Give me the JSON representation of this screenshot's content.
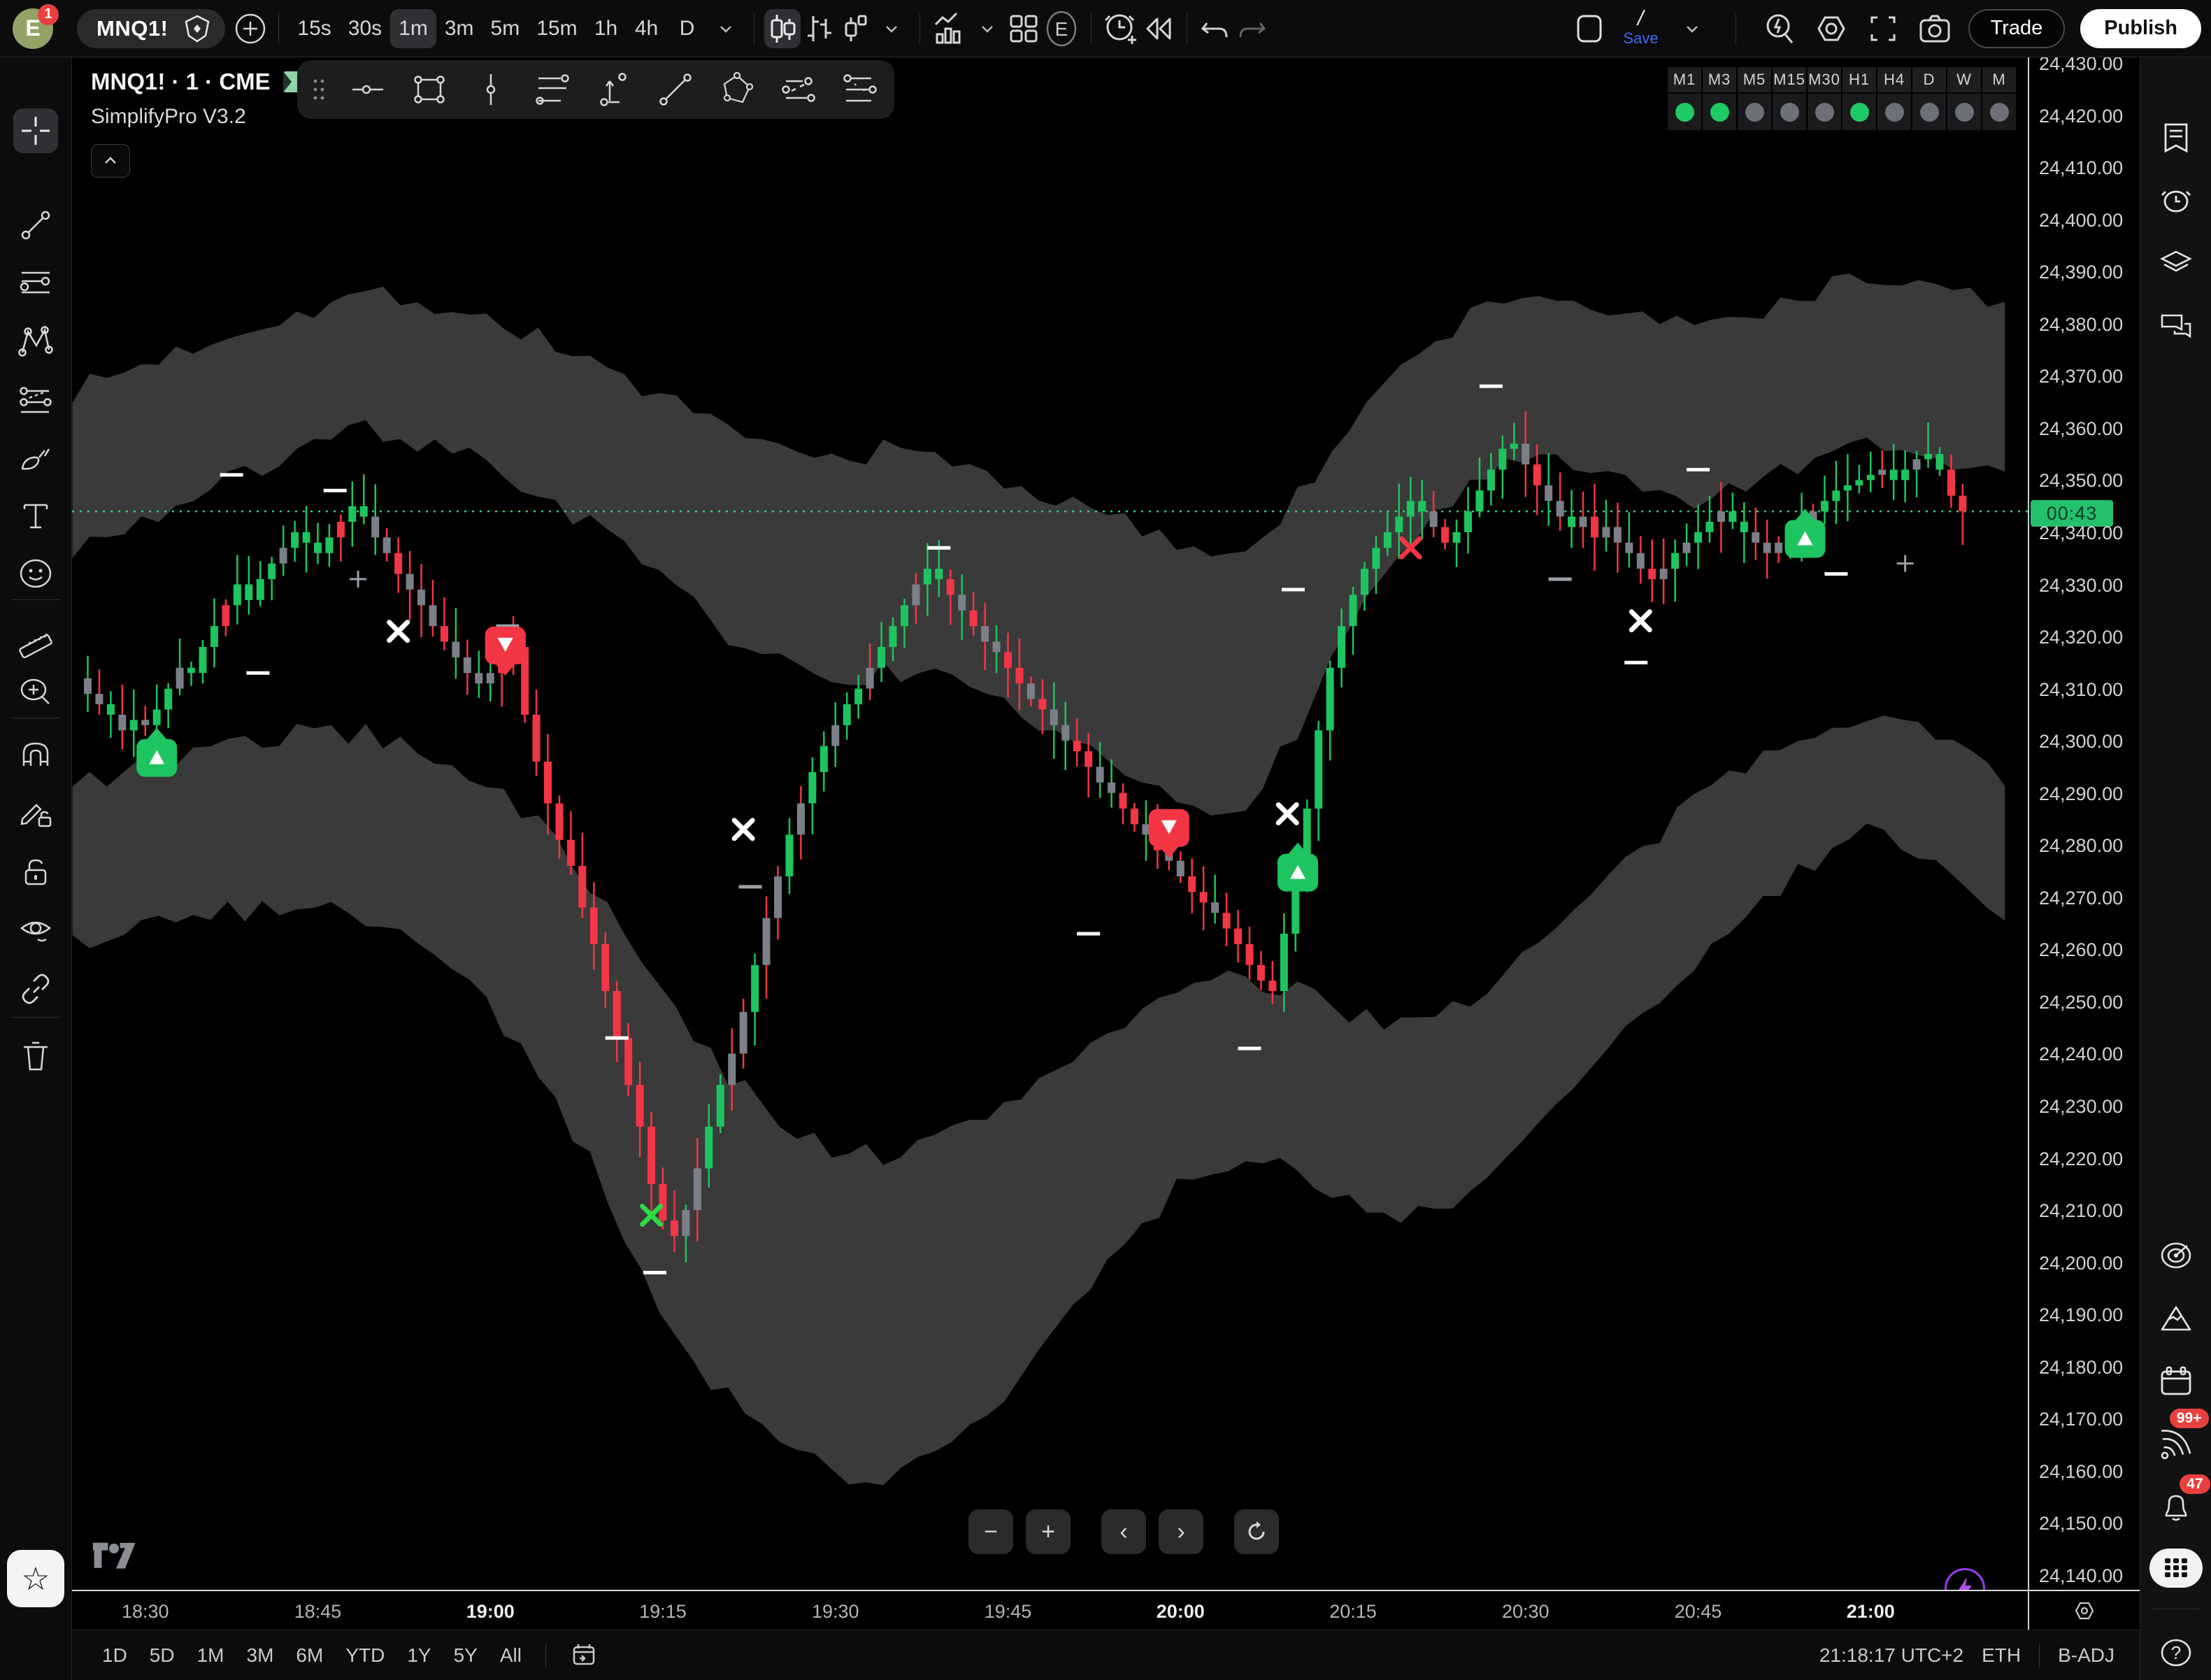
{
  "header": {
    "avatar_letter": "E",
    "avatar_badge": "1",
    "symbol": "MNQ1!",
    "intervals": [
      "15s",
      "30s",
      "1m",
      "3m",
      "5m",
      "15m",
      "1h",
      "4h",
      "D"
    ],
    "active_interval": "1m",
    "exchange_letter": "E",
    "save_label": "Save",
    "trade_label": "Trade",
    "publish_label": "Publish"
  },
  "legend": {
    "title": "MNQ1! · 1 · CME",
    "indicator": "SimplifyPro V3.2"
  },
  "mtf_panel": {
    "columns": [
      {
        "label": "M1",
        "on": true
      },
      {
        "label": "M3",
        "on": true
      },
      {
        "label": "M5",
        "on": false
      },
      {
        "label": "M15",
        "on": false
      },
      {
        "label": "M30",
        "on": false
      },
      {
        "label": "H1",
        "on": true
      },
      {
        "label": "H4",
        "on": false
      },
      {
        "label": "D",
        "on": false
      },
      {
        "label": "W",
        "on": false
      },
      {
        "label": "M",
        "on": false
      }
    ],
    "on_color": "#1ecb62",
    "off_color": "#6d7076"
  },
  "price_axis": {
    "max": 24430,
    "min": 24140,
    "step": 10,
    "countdown": "00:43"
  },
  "time_axis": {
    "labels": [
      {
        "text": "18:30",
        "minute": 5,
        "bold": false
      },
      {
        "text": "18:45",
        "minute": 20,
        "bold": false
      },
      {
        "text": "19:00",
        "minute": 35,
        "bold": true
      },
      {
        "text": "19:15",
        "minute": 50,
        "bold": false
      },
      {
        "text": "19:30",
        "minute": 65,
        "bold": false
      },
      {
        "text": "19:45",
        "minute": 80,
        "bold": false
      },
      {
        "text": "20:00",
        "minute": 95,
        "bold": true
      },
      {
        "text": "20:15",
        "minute": 110,
        "bold": false
      },
      {
        "text": "20:30",
        "minute": 125,
        "bold": false
      },
      {
        "text": "20:45",
        "minute": 140,
        "bold": false
      },
      {
        "text": "21:00",
        "minute": 155,
        "bold": true
      }
    ]
  },
  "bottom_bar": {
    "ranges": [
      "1D",
      "5D",
      "1M",
      "3M",
      "6M",
      "YTD",
      "1Y",
      "5Y",
      "All"
    ],
    "clock": "21:18:17 UTC+2",
    "session": "ETH",
    "adjustment": "B-ADJ"
  },
  "right_sidebar": {
    "feed_badge": "99+",
    "bell_badge": "47"
  },
  "chart_data": {
    "type": "candlestick",
    "symbol": "MNQ1!",
    "interval_minutes": 1,
    "exchange": "CME",
    "first_bar_time": "18:25",
    "bars": 164,
    "price_base": 24000,
    "current_price": 24344,
    "price_line_color": "#2bd47d",
    "band_color": "#3a3a3a",
    "up_color": "#1ec45f",
    "down_color": "#f23645",
    "neutral_color": "#7b7f88",
    "closes": [
      309,
      307,
      305,
      302,
      304,
      303,
      306,
      310,
      314,
      313,
      318,
      322,
      326,
      330,
      327,
      331,
      334,
      337,
      340,
      338,
      336,
      339,
      342,
      345,
      343,
      339,
      336,
      332,
      329,
      326,
      322,
      319,
      316,
      313,
      311,
      313,
      316,
      318,
      305,
      296,
      288,
      281,
      276,
      268,
      261,
      252,
      243,
      234,
      226,
      215,
      208,
      205,
      210,
      218,
      226,
      234,
      240,
      248,
      257,
      266,
      274,
      282,
      288,
      294,
      299,
      303,
      307,
      310,
      314,
      318,
      322,
      326,
      330,
      333,
      331,
      328,
      325,
      322,
      319,
      317,
      314,
      311,
      308,
      306,
      303,
      300,
      298,
      295,
      292,
      290,
      287,
      284,
      282,
      279,
      277,
      274,
      271,
      269,
      267,
      264,
      261,
      257,
      254,
      252,
      263,
      272,
      287,
      302,
      314,
      322,
      328,
      333,
      337,
      340,
      343,
      346,
      344,
      341,
      338,
      340,
      344,
      348,
      352,
      356,
      357,
      353,
      349,
      346,
      343,
      341,
      343,
      339,
      341,
      338,
      336,
      333,
      331,
      333,
      336,
      338,
      340,
      342,
      344,
      342,
      340,
      338,
      336,
      338,
      340,
      342,
      344,
      346,
      348,
      349,
      350,
      351,
      352,
      350,
      352,
      354,
      355,
      352,
      347,
      344
    ],
    "bar_colors": "nngngnggngggrggggnggggrggnnrnnnrnnnnrnrrrrrrrrrrrrrrnnggnngnngnggnggngggnggrnrnnrrnrnnrrnnrrnrnnrrnrrrrrgggggggggggggnrgggggcnrnngnrnnnnrngnggnggnnngnngggggnggnggrr",
    "band_anchors": [
      [
        -1,
        367,
        337,
        291,
        261
      ],
      [
        5,
        372,
        342,
        295,
        264
      ],
      [
        10,
        376,
        347,
        297,
        266
      ],
      [
        15,
        380,
        352,
        300,
        268
      ],
      [
        20,
        383,
        356,
        302,
        269
      ],
      [
        25,
        386,
        360,
        301,
        266
      ],
      [
        30,
        384,
        357,
        298,
        260
      ],
      [
        35,
        381,
        353,
        292,
        250
      ],
      [
        40,
        377,
        347,
        283,
        235
      ],
      [
        45,
        372,
        340,
        270,
        215
      ],
      [
        50,
        366,
        331,
        252,
        192
      ],
      [
        55,
        360,
        322,
        238,
        176
      ],
      [
        60,
        356,
        315,
        228,
        166
      ],
      [
        65,
        354,
        311,
        222,
        160
      ],
      [
        70,
        356,
        314,
        220,
        158
      ],
      [
        75,
        354,
        311,
        224,
        164
      ],
      [
        80,
        350,
        306,
        230,
        174
      ],
      [
        85,
        346,
        300,
        238,
        188
      ],
      [
        90,
        342,
        294,
        246,
        202
      ],
      [
        95,
        338,
        288,
        252,
        214
      ],
      [
        100,
        336,
        286,
        254,
        220
      ],
      [
        105,
        345,
        300,
        252,
        218
      ],
      [
        110,
        360,
        322,
        248,
        212
      ],
      [
        115,
        372,
        338,
        246,
        208
      ],
      [
        120,
        381,
        348,
        250,
        212
      ],
      [
        125,
        386,
        354,
        258,
        222
      ],
      [
        130,
        384,
        352,
        268,
        234
      ],
      [
        135,
        381,
        348,
        278,
        246
      ],
      [
        140,
        379,
        346,
        288,
        258
      ],
      [
        145,
        382,
        349,
        296,
        268
      ],
      [
        150,
        386,
        353,
        302,
        276
      ],
      [
        155,
        389,
        356,
        306,
        282
      ],
      [
        160,
        387,
        354,
        302,
        278
      ],
      [
        165,
        385,
        352,
        296,
        270
      ],
      [
        168,
        384,
        351,
        292,
        264
      ]
    ],
    "markers": [
      {
        "t": 6,
        "price": 24299,
        "kind": "buy"
      },
      {
        "t": 36.3,
        "price": 24316,
        "kind": "sell"
      },
      {
        "t": 27,
        "price": 24321,
        "kind": "x",
        "color": "#ffffff"
      },
      {
        "t": 49,
        "price": 24209,
        "kind": "x",
        "color": "#2bdb45"
      },
      {
        "t": 57,
        "price": 24283,
        "kind": "x",
        "color": "#ffffff"
      },
      {
        "t": 94,
        "price": 24281,
        "kind": "sell"
      },
      {
        "t": 104.3,
        "price": 24286,
        "kind": "x",
        "color": "#ffffff"
      },
      {
        "t": 105.2,
        "price": 24277,
        "kind": "buy"
      },
      {
        "t": 115,
        "price": 24337,
        "kind": "x",
        "color": "#f23645"
      },
      {
        "t": 135,
        "price": 24323,
        "kind": "x",
        "color": "#ffffff"
      },
      {
        "t": 149.3,
        "price": 24341,
        "kind": "buy"
      }
    ],
    "dashes": [
      {
        "t": 12.5,
        "price": 24351,
        "color": "#ffffff"
      },
      {
        "t": 21.5,
        "price": 24348,
        "color": "#ffffff"
      },
      {
        "t": 14.8,
        "price": 24313,
        "color": "#ffffff"
      },
      {
        "t": 36.5,
        "price": 24322,
        "color": "#9aa0a6"
      },
      {
        "t": 46,
        "price": 24243,
        "color": "#ffffff"
      },
      {
        "t": 49.3,
        "price": 24198,
        "color": "#ffffff"
      },
      {
        "t": 57.6,
        "price": 24272,
        "color": "#9aa0a6"
      },
      {
        "t": 74,
        "price": 24337,
        "color": "#ffffff"
      },
      {
        "t": 87,
        "price": 24263,
        "color": "#ffffff"
      },
      {
        "t": 101,
        "price": 24241,
        "color": "#ffffff"
      },
      {
        "t": 104.8,
        "price": 24329,
        "color": "#ffffff"
      },
      {
        "t": 122,
        "price": 24368,
        "color": "#ffffff"
      },
      {
        "t": 128,
        "price": 24331,
        "color": "#9aa0a6"
      },
      {
        "t": 134.6,
        "price": 24315,
        "color": "#ffffff"
      },
      {
        "t": 140,
        "price": 24352,
        "color": "#ffffff"
      },
      {
        "t": 152,
        "price": 24332,
        "color": "#ffffff"
      }
    ],
    "plus_marks": [
      {
        "t": 23.5,
        "price": 24331
      },
      {
        "t": 158,
        "price": 24334
      }
    ]
  }
}
